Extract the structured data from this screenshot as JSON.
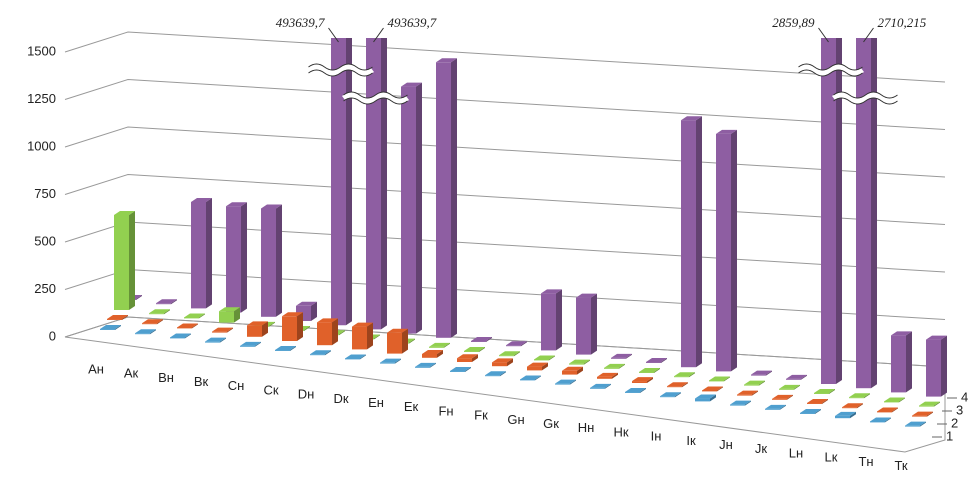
{
  "chart_data": {
    "type": "bar3d",
    "categories": [
      "Ан",
      "Ак",
      "Вн",
      "Вк",
      "Сн",
      "Ск",
      "Dн",
      "Dк",
      "Ен",
      "Ек",
      "Fн",
      "Fк",
      "Gн",
      "Gк",
      "Нн",
      "Нк",
      "Iн",
      "Iк",
      "Jн",
      "Jк",
      "Lн",
      "Lк",
      "Тн",
      "Тк"
    ],
    "series": [
      {
        "name": "1",
        "color": "#4f9fcf",
        "values": [
          5,
          5,
          5,
          5,
          5,
          5,
          5,
          5,
          5,
          5,
          5,
          5,
          5,
          5,
          5,
          5,
          5,
          15,
          5,
          5,
          5,
          12,
          5,
          5
        ]
      },
      {
        "name": "2",
        "color": "#e0612a",
        "values": [
          5,
          5,
          5,
          5,
          60,
          130,
          120,
          120,
          110,
          20,
          20,
          20,
          20,
          20,
          10,
          10,
          5,
          5,
          5,
          5,
          5,
          5,
          5,
          5
        ]
      },
      {
        "name": "3",
        "color": "#92d050",
        "values": [
          500,
          5,
          5,
          60,
          5,
          5,
          5,
          5,
          5,
          5,
          5,
          5,
          5,
          5,
          5,
          5,
          5,
          5,
          5,
          5,
          5,
          5,
          5,
          5
        ]
      },
      {
        "name": "4",
        "color": "#8e5ea2",
        "values": [
          5,
          5,
          560,
          560,
          570,
          80,
          493639.7,
          493639.7,
          1300,
          1450,
          5,
          5,
          300,
          300,
          5,
          5,
          1300,
          1250,
          5,
          5,
          2859.89,
          2710.215,
          300,
          300
        ],
        "value_labels": [
          null,
          null,
          null,
          null,
          null,
          null,
          "493639,7",
          "493639,7",
          null,
          null,
          null,
          null,
          null,
          null,
          null,
          null,
          null,
          null,
          null,
          null,
          "2859,89",
          "2710,215",
          null,
          null
        ]
      }
    ],
    "ylim": [
      0,
      1500
    ],
    "yticks": [
      0,
      250,
      500,
      750,
      1000,
      1250,
      1500
    ],
    "grid": true
  }
}
